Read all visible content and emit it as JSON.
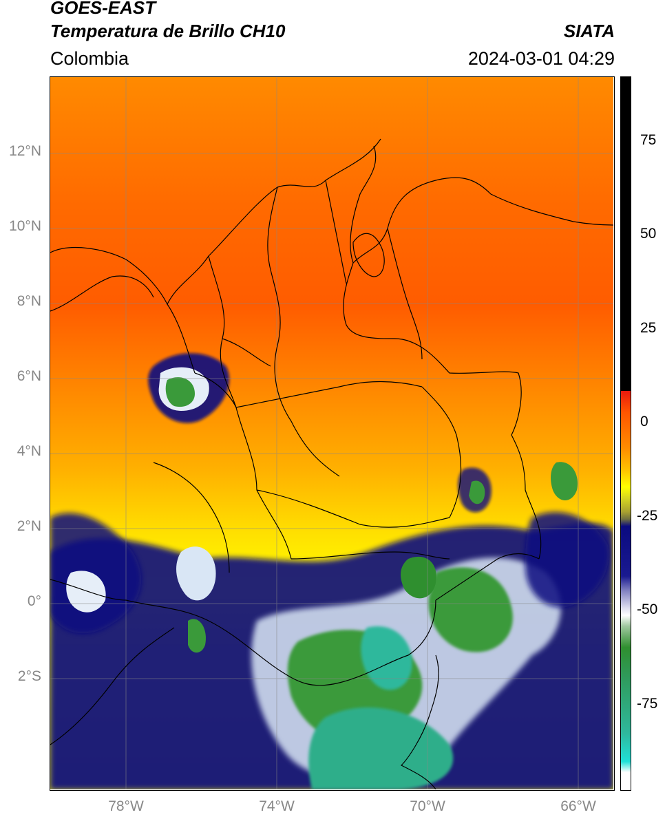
{
  "header": {
    "satellite": "GOES-EAST",
    "product": "Temperatura de Brillo CH10",
    "region": "Colombia",
    "source": "SIATA",
    "datetime": "2024-03-01 04:29"
  },
  "map": {
    "lat_labels": [
      "12°N",
      "10°N",
      "8°N",
      "6°N",
      "4°N",
      "2°N",
      "0°",
      "2°S"
    ],
    "lon_labels": [
      "78°W",
      "74°W",
      "70°W",
      "66°W"
    ]
  },
  "colorbar": {
    "ticks": [
      "75",
      "50",
      "25",
      "0",
      "-25",
      "-50",
      "-75"
    ],
    "colors": {
      "black": "#000000",
      "red": "#e8190e",
      "orange": "#ff8c00",
      "yellow": "#ffff00",
      "olive": "#b5b321",
      "navy": "#0a0a80",
      "white": "#ffffff",
      "green": "#2f8f2f",
      "cyan": "#20d8d0"
    }
  }
}
